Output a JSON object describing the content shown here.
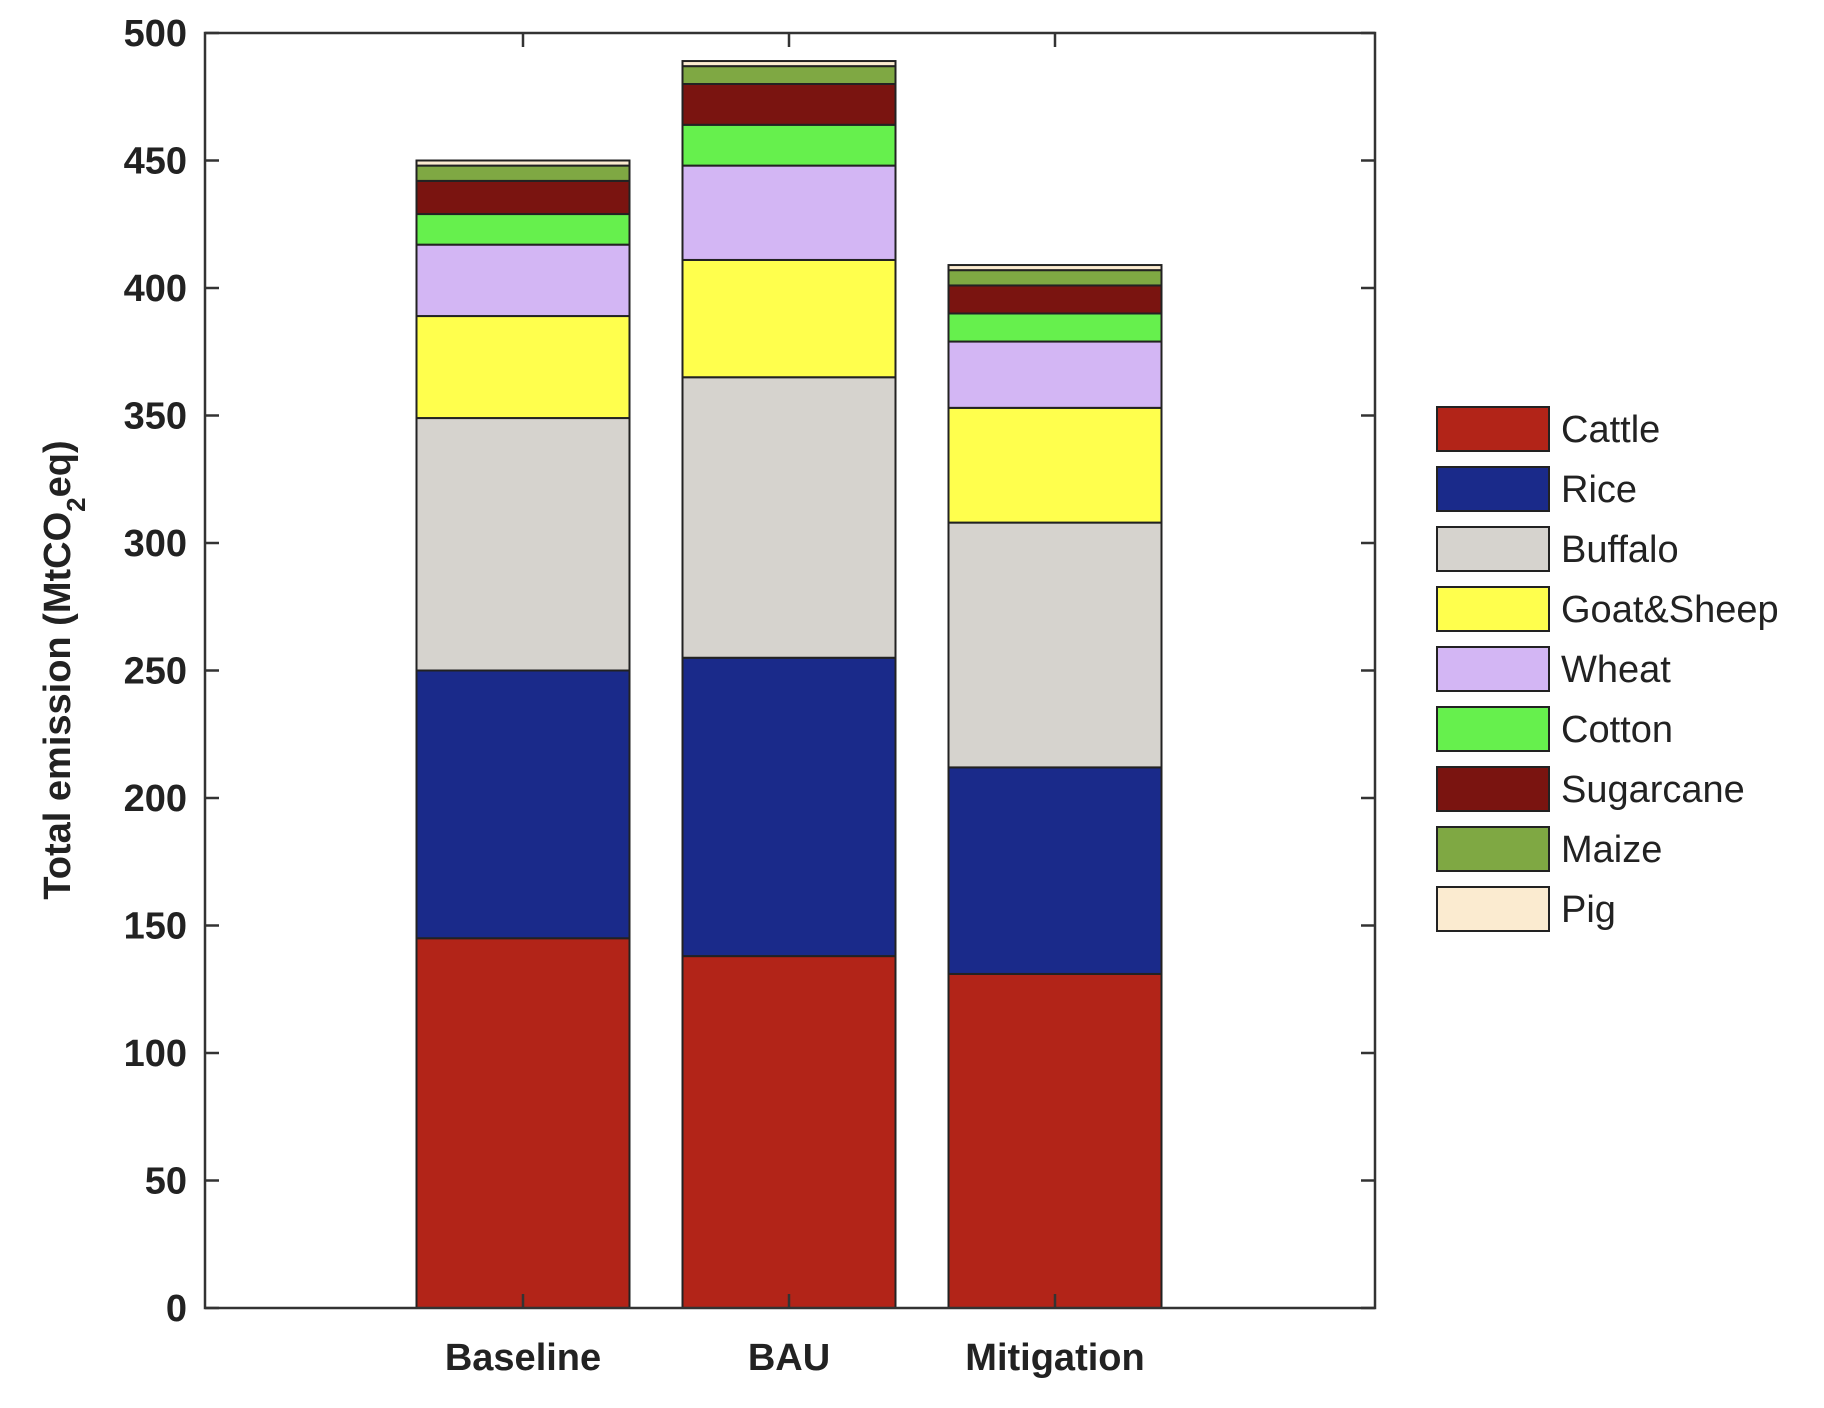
{
  "chart_data": {
    "type": "bar",
    "stacked": true,
    "categories": [
      "Baseline",
      "BAU",
      "Mitigation"
    ],
    "ylabel": {
      "prefix": "Total emission (MtCO",
      "subscript": "2",
      "suffix": "eq)"
    },
    "xlabel": "",
    "ylim": [
      0,
      500
    ],
    "yticks": [
      0,
      50,
      100,
      150,
      200,
      250,
      300,
      350,
      400,
      450,
      500
    ],
    "grid": false,
    "legend_position": "right",
    "series": [
      {
        "name": "Cattle",
        "color": "#B22418",
        "values": [
          145,
          138,
          131
        ]
      },
      {
        "name": "Rice",
        "color": "#1A2A8A",
        "values": [
          105,
          117,
          81
        ]
      },
      {
        "name": "Buffalo",
        "color": "#D6D3CE",
        "values": [
          99,
          110,
          96
        ]
      },
      {
        "name": "Goat&Sheep",
        "color": "#FFFF4D",
        "values": [
          40,
          46,
          45
        ]
      },
      {
        "name": "Wheat",
        "color": "#D3B6F4",
        "values": [
          28,
          37,
          26
        ]
      },
      {
        "name": "Cotton",
        "color": "#66F04D",
        "values": [
          12,
          16,
          11
        ]
      },
      {
        "name": "Sugarcane",
        "color": "#7A1410",
        "values": [
          13,
          16,
          11
        ]
      },
      {
        "name": "Maize",
        "color": "#7FA843",
        "values": [
          6,
          7,
          6
        ]
      },
      {
        "name": "Pig",
        "color": "#FBEBD0",
        "values": [
          2,
          2,
          2
        ]
      }
    ]
  }
}
